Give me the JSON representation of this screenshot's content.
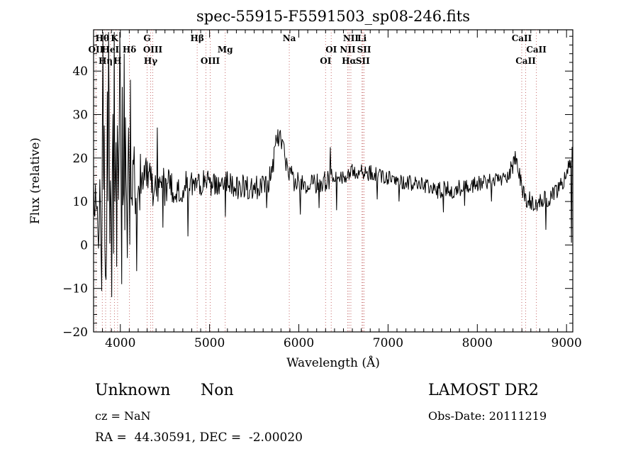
{
  "chart_data": {
    "type": "line",
    "title": "spec-55915-F5591503_sp08-246.fits",
    "xlabel": "Wavelength (Å)",
    "ylabel": "Flux (relative)",
    "xlim": [
      3700,
      9070
    ],
    "ylim": [
      -20,
      49.5
    ],
    "x_ticks": [
      4000,
      5000,
      6000,
      7000,
      8000,
      9000
    ],
    "x_minor_step": 100,
    "y_ticks": [
      -20,
      -10,
      0,
      10,
      20,
      30,
      40
    ],
    "y_minor_step": 2,
    "grid": false,
    "legend": "none",
    "line_color": "#000000",
    "marker_line_color": "#c66a6a",
    "spectral_lines": [
      {
        "label": "Hθ",
        "wl": 3798,
        "row": 0
      },
      {
        "label": "K",
        "wl": 3934,
        "row": 0
      },
      {
        "label": "G",
        "wl": 4300,
        "row": 0
      },
      {
        "label": "Hβ",
        "wl": 4861,
        "row": 0
      },
      {
        "label": "Na",
        "wl": 5893,
        "row": 0
      },
      {
        "label": "NII",
        "wl": 6583,
        "row": 0
      },
      {
        "label": "Li",
        "wl": 6708,
        "row": 0
      },
      {
        "label": "CaII",
        "wl": 8498,
        "row": 0
      },
      {
        "label": "OII",
        "wl": 3727,
        "row": 1
      },
      {
        "label": "HeI",
        "wl": 3889,
        "row": 1
      },
      {
        "label": "Hδ",
        "wl": 4102,
        "row": 1
      },
      {
        "label": "OIII",
        "wl": 4363,
        "row": 1
      },
      {
        "label": "Mg",
        "wl": 5175,
        "row": 1
      },
      {
        "label": "OI",
        "wl": 6363,
        "row": 1
      },
      {
        "label": "NII",
        "wl": 6548,
        "row": 1
      },
      {
        "label": "SII",
        "wl": 6731,
        "row": 1
      },
      {
        "label": "CaII",
        "wl": 8662,
        "row": 1
      },
      {
        "label": "Hη",
        "wl": 3835,
        "row": 2
      },
      {
        "label": "H",
        "wl": 3969,
        "row": 2
      },
      {
        "label": "Hγ",
        "wl": 4340,
        "row": 2
      },
      {
        "label": "OIII",
        "wl": 5007,
        "row": 2
      },
      {
        "label": "OI",
        "wl": 6300,
        "row": 2
      },
      {
        "label": "Hα",
        "wl": 6563,
        "row": 2
      },
      {
        "label": "SII",
        "wl": 6717,
        "row": 2
      },
      {
        "label": "CaII",
        "wl": 8542,
        "row": 2
      },
      {
        "label": "",
        "wl": 4959,
        "row": 2
      }
    ],
    "series": {
      "name": "flux",
      "x_start": 3700,
      "x_end": 9070,
      "step": 7,
      "seed": 20111219,
      "baseline_anchors": [
        [
          3700,
          12
        ],
        [
          3750,
          14
        ],
        [
          4150,
          14
        ],
        [
          4250,
          15
        ],
        [
          4350,
          14
        ],
        [
          4450,
          13.5
        ],
        [
          4600,
          13
        ],
        [
          4800,
          14
        ],
        [
          5000,
          14
        ],
        [
          5200,
          14
        ],
        [
          5450,
          13
        ],
        [
          5650,
          14
        ],
        [
          5720,
          20
        ],
        [
          5770,
          25
        ],
        [
          5810,
          24
        ],
        [
          5860,
          19
        ],
        [
          5930,
          15
        ],
        [
          6050,
          13.5
        ],
        [
          6200,
          14
        ],
        [
          6350,
          15
        ],
        [
          6500,
          16
        ],
        [
          6650,
          17
        ],
        [
          6800,
          16.5
        ],
        [
          7000,
          15.5
        ],
        [
          7200,
          14.5
        ],
        [
          7400,
          13.5
        ],
        [
          7600,
          12.5
        ],
        [
          7800,
          13
        ],
        [
          8000,
          14
        ],
        [
          8200,
          15
        ],
        [
          8350,
          16
        ],
        [
          8430,
          20
        ],
        [
          8470,
          16
        ],
        [
          8530,
          11
        ],
        [
          8650,
          9.5
        ],
        [
          8800,
          11
        ],
        [
          8900,
          12.5
        ],
        [
          8970,
          15
        ],
        [
          9020,
          18
        ],
        [
          9070,
          21
        ]
      ],
      "noise_anchors": [
        [
          3700,
          3
        ],
        [
          3750,
          20
        ],
        [
          3790,
          26
        ],
        [
          3990,
          27
        ],
        [
          4040,
          22
        ],
        [
          4090,
          16
        ],
        [
          4140,
          11
        ],
        [
          4200,
          8
        ],
        [
          4280,
          6
        ],
        [
          4360,
          5
        ],
        [
          4450,
          4.5
        ],
        [
          4600,
          4
        ],
        [
          4800,
          3.5
        ],
        [
          5100,
          3
        ],
        [
          5500,
          3
        ],
        [
          5800,
          3
        ],
        [
          6000,
          2.5
        ],
        [
          6300,
          2.5
        ],
        [
          6600,
          2
        ],
        [
          7000,
          1.8
        ],
        [
          7400,
          2
        ],
        [
          7700,
          2.2
        ],
        [
          8000,
          1.8
        ],
        [
          8400,
          2
        ],
        [
          8550,
          2.2
        ],
        [
          8800,
          2.2
        ],
        [
          9000,
          2
        ],
        [
          9070,
          2.5
        ]
      ],
      "spikes": [
        [
          3805,
          49
        ],
        [
          3843,
          -8
        ],
        [
          3871,
          49
        ],
        [
          3906,
          -12
        ],
        [
          3934,
          49
        ],
        [
          3959,
          -5
        ],
        [
          3991,
          49
        ],
        [
          4016,
          -9
        ],
        [
          4046,
          44
        ],
        [
          4076,
          -3
        ],
        [
          4111,
          38
        ],
        [
          4180,
          -6
        ],
        [
          4415,
          27
        ],
        [
          4480,
          4
        ],
        [
          4760,
          2
        ],
        [
          5180,
          6.5
        ],
        [
          5640,
          8.5
        ],
        [
          6020,
          7
        ],
        [
          6230,
          8.5
        ],
        [
          6350,
          22.5
        ],
        [
          6420,
          8
        ],
        [
          6880,
          10.5
        ],
        [
          7120,
          10
        ],
        [
          7620,
          7.5
        ],
        [
          7860,
          9
        ],
        [
          8160,
          10
        ],
        [
          8770,
          3.5
        ],
        [
          9052,
          0.5
        ]
      ]
    }
  },
  "footer": {
    "class_label": "Unknown",
    "subclass_label": "Non",
    "cz_label": "cz = NaN",
    "radec_label": "RA =  44.30591, DEC =  -2.00020",
    "survey_label": "LAMOST DR2",
    "obsdate_label": "Obs-Date: 20111219"
  }
}
